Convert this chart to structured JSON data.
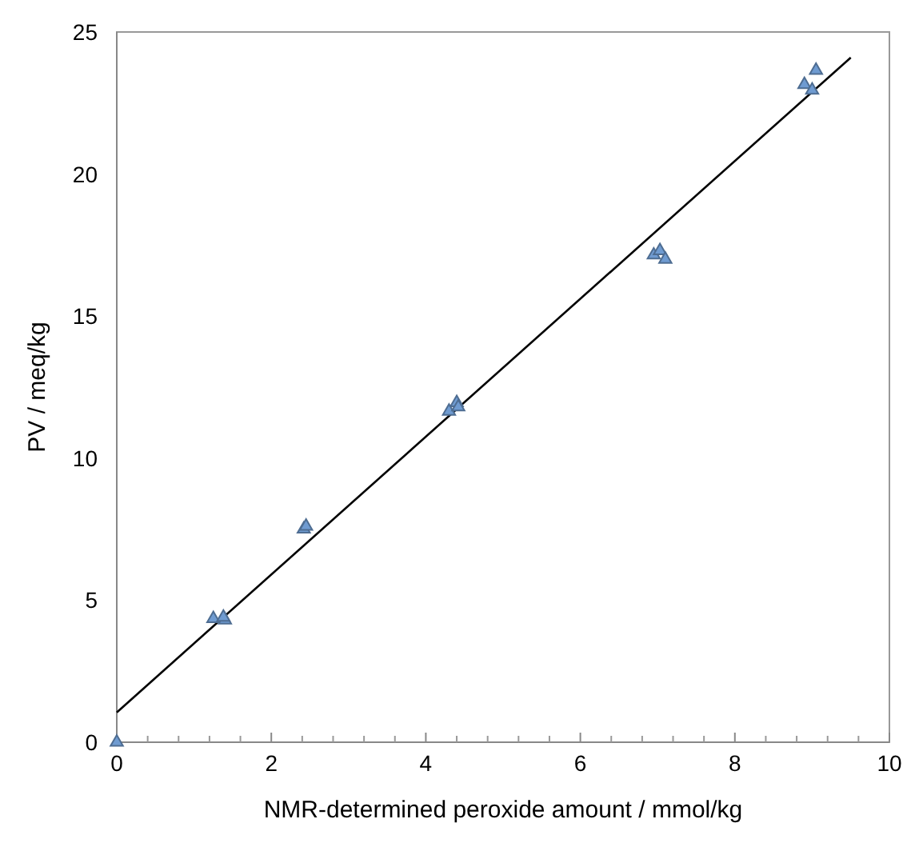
{
  "chart_data": {
    "type": "scatter",
    "xlabel": "NMR-determined peroxide amount / mmol/kg",
    "ylabel": "PV / meq/kg",
    "xlim": [
      0,
      10
    ],
    "ylim": [
      0,
      25
    ],
    "xticks": [
      0,
      2,
      4,
      6,
      8,
      10
    ],
    "yticks": [
      0,
      5,
      10,
      15,
      20,
      25
    ],
    "grid": false,
    "series": [
      {
        "marker": "triangle",
        "color": "#6f9bd1",
        "x": [
          0,
          1.25,
          1.4,
          1.38,
          2.42,
          2.45,
          4.3,
          4.4,
          4.42,
          6.95,
          7.03,
          7.1,
          8.9,
          9.0,
          9.05
        ],
        "values": [
          0,
          4.35,
          4.3,
          4.4,
          7.5,
          7.6,
          11.65,
          11.95,
          11.8,
          17.15,
          17.3,
          17.0,
          23.15,
          22.95,
          23.65
        ]
      },
      {
        "type": "line",
        "color": "#000000",
        "x": [
          0,
          9.5
        ],
        "values": [
          1.05,
          24.1
        ]
      }
    ]
  }
}
